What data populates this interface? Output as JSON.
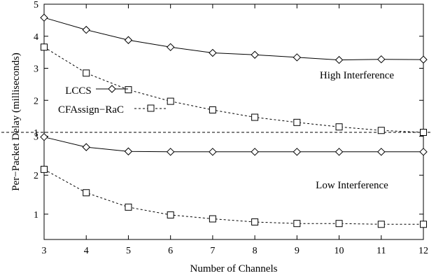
{
  "chart_data": {
    "type": "line",
    "xlabel": "Number of Channels",
    "ylabel": "Per−Packet Delay (milliseconds)",
    "x": [
      3,
      4,
      5,
      6,
      7,
      8,
      9,
      10,
      11,
      12
    ],
    "xlim": [
      3,
      12
    ],
    "x_ticks": [
      "3",
      "4",
      "5",
      "6",
      "7",
      "8",
      "9",
      "10",
      "11",
      "12"
    ],
    "legend_placement": "upper-left (inside top panel)",
    "grid": false,
    "panels": [
      {
        "annotation": "High Interference",
        "ylim": [
          1,
          5
        ],
        "y_ticks": [
          "1",
          "2",
          "3",
          "4",
          "5"
        ],
        "series": [
          {
            "name": "LCCS",
            "marker": "diamond",
            "line": "solid",
            "values": [
              4.58,
              4.2,
              3.88,
              3.66,
              3.48,
              3.42,
              3.34,
              3.26,
              3.28,
              3.27
            ]
          },
          {
            "name": "CFAssign−RaC",
            "marker": "square",
            "line": "dashed",
            "values": [
              3.66,
              2.85,
              2.33,
              1.97,
              1.7,
              1.47,
              1.31,
              1.17,
              1.06,
              1.0
            ]
          }
        ]
      },
      {
        "annotation": "Low Interference",
        "ylim": [
          0.35,
          3.1
        ],
        "y_ticks": [
          "1",
          "2",
          "3"
        ],
        "series": [
          {
            "name": "LCCS",
            "marker": "diamond",
            "line": "solid",
            "values": [
              2.98,
              2.72,
              2.61,
              2.6,
              2.6,
              2.6,
              2.6,
              2.6,
              2.6,
              2.6
            ]
          },
          {
            "name": "CFAssign−RaC",
            "marker": "square",
            "line": "dashed",
            "values": [
              2.15,
              1.55,
              1.18,
              0.98,
              0.88,
              0.8,
              0.76,
              0.76,
              0.74,
              0.74
            ]
          }
        ]
      }
    ]
  }
}
